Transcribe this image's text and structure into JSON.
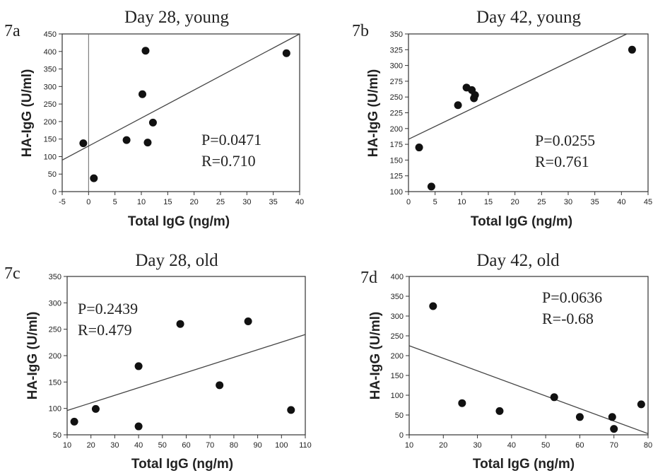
{
  "chart_data": [
    {
      "panel": "7a",
      "type": "scatter",
      "title": "Day 28, young",
      "xlabel": "Total IgG (ng/m)",
      "ylabel": "HA-IgG (U/ml)",
      "xlim": [
        -5,
        40
      ],
      "ylim": [
        0,
        450
      ],
      "xticks": [
        -5,
        0,
        5,
        10,
        15,
        20,
        25,
        30,
        35,
        40
      ],
      "yticks": [
        0,
        50,
        100,
        150,
        200,
        250,
        300,
        350,
        400,
        450
      ],
      "points": [
        {
          "x": -1,
          "y": 138
        },
        {
          "x": 1,
          "y": 38
        },
        {
          "x": 7.2,
          "y": 147
        },
        {
          "x": 10.2,
          "y": 278
        },
        {
          "x": 10.8,
          "y": 402
        },
        {
          "x": 11.2,
          "y": 140
        },
        {
          "x": 12.2,
          "y": 197
        },
        {
          "x": 37.5,
          "y": 395
        }
      ],
      "fit": {
        "x": [
          -5,
          40
        ],
        "y": [
          90,
          450
        ]
      },
      "zero_line_x": 0,
      "stats": {
        "p": "P=0.0471",
        "r": "R=0.710"
      }
    },
    {
      "panel": "7b",
      "type": "scatter",
      "title": "Day 42, young",
      "xlabel": "Total IgG (ng/m)",
      "ylabel": "HA-IgG (U/ml)",
      "xlim": [
        0,
        45
      ],
      "ylim": [
        100,
        350
      ],
      "xticks": [
        0,
        5,
        10,
        15,
        20,
        25,
        30,
        35,
        40,
        45
      ],
      "yticks": [
        100,
        125,
        150,
        175,
        200,
        225,
        250,
        275,
        300,
        325,
        350
      ],
      "points": [
        {
          "x": 2,
          "y": 170
        },
        {
          "x": 4.3,
          "y": 108
        },
        {
          "x": 9.3,
          "y": 237
        },
        {
          "x": 10.9,
          "y": 265
        },
        {
          "x": 11.9,
          "y": 261
        },
        {
          "x": 12.3,
          "y": 248
        },
        {
          "x": 12.5,
          "y": 253
        },
        {
          "x": 42,
          "y": 325
        }
      ],
      "fit": {
        "x": [
          0,
          41
        ],
        "y": [
          183,
          350
        ]
      },
      "stats": {
        "p": "P=0.0255",
        "r": "R=0.761"
      }
    },
    {
      "panel": "7c",
      "type": "scatter",
      "title": "Day 28, old",
      "xlabel": "Total IgG (ng/m)",
      "ylabel": "HA-IgG (U/ml)",
      "xlim": [
        10,
        110
      ],
      "ylim": [
        50,
        350
      ],
      "xticks": [
        10,
        20,
        30,
        40,
        50,
        60,
        70,
        80,
        90,
        100,
        110
      ],
      "yticks": [
        50,
        100,
        150,
        200,
        250,
        300,
        350
      ],
      "points": [
        {
          "x": 13,
          "y": 75
        },
        {
          "x": 22,
          "y": 99
        },
        {
          "x": 40,
          "y": 180
        },
        {
          "x": 40,
          "y": 66
        },
        {
          "x": 57.5,
          "y": 260
        },
        {
          "x": 74,
          "y": 144
        },
        {
          "x": 86,
          "y": 265
        },
        {
          "x": 104,
          "y": 97
        }
      ],
      "fit": {
        "x": [
          10,
          110
        ],
        "y": [
          96,
          240
        ]
      },
      "stats": {
        "p": "P=0.2439",
        "r": "R=0.479"
      }
    },
    {
      "panel": "7d",
      "type": "scatter",
      "title": "Day 42, old",
      "xlabel": "Total IgG (ng/m)",
      "ylabel": "HA-IgG (U/ml)",
      "xlim": [
        10,
        80
      ],
      "ylim": [
        0,
        400
      ],
      "xticks": [
        10,
        20,
        30,
        40,
        50,
        60,
        70,
        80
      ],
      "yticks": [
        0,
        50,
        100,
        150,
        200,
        250,
        300,
        350,
        400
      ],
      "points": [
        {
          "x": 17,
          "y": 325
        },
        {
          "x": 25.5,
          "y": 80
        },
        {
          "x": 36.5,
          "y": 60
        },
        {
          "x": 52.5,
          "y": 95
        },
        {
          "x": 60,
          "y": 45
        },
        {
          "x": 69.5,
          "y": 45
        },
        {
          "x": 70,
          "y": 15
        },
        {
          "x": 78,
          "y": 77
        }
      ],
      "fit": {
        "x": [
          10,
          80
        ],
        "y": [
          225,
          3
        ]
      },
      "stats": {
        "p": "P=0.0636",
        "r": "R=-0.68"
      }
    }
  ]
}
